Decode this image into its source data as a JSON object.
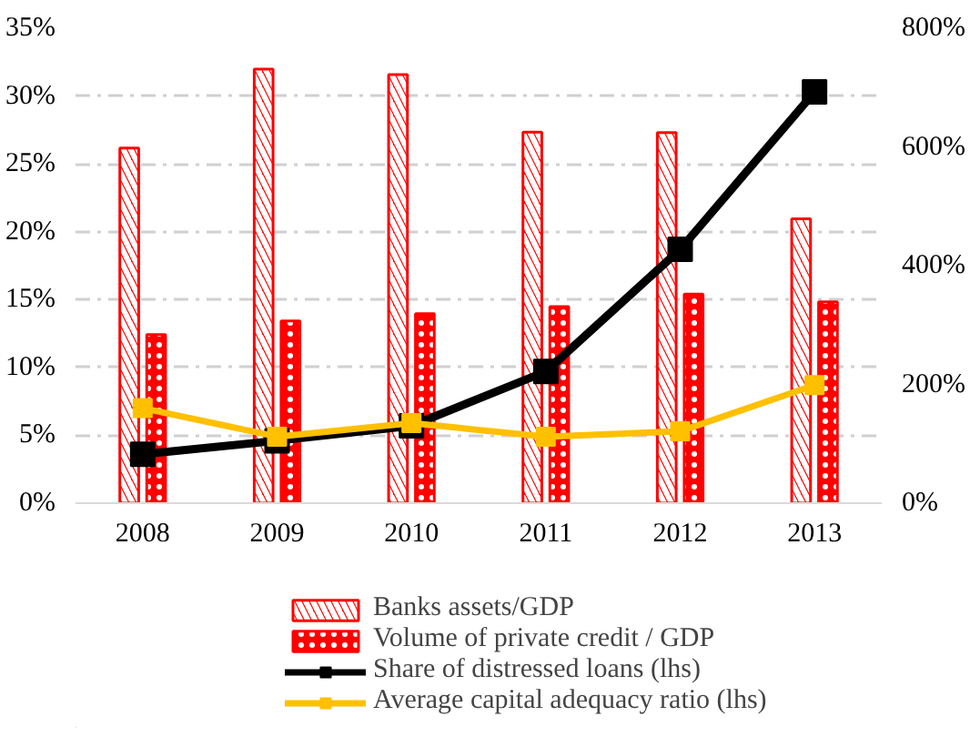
{
  "chart_data": {
    "type": "bar",
    "categories": [
      "2008",
      "2009",
      "2010",
      "2011",
      "2012",
      "2013"
    ],
    "series": [
      {
        "name": "Banks assets/GDP",
        "color": "#ff0000",
        "axis": "y2",
        "values": [
          598,
          731,
          722,
          625,
          624,
          479
        ]
      },
      {
        "name": "Volume of private credit / GDP",
        "color": "#ff0000",
        "axis": "y2",
        "values": [
          284,
          307,
          319,
          331,
          352,
          339
        ]
      },
      {
        "name": "Share of distressed loans (lhs)",
        "type": "line",
        "color": "#000000",
        "values": [
          3.6,
          4.6,
          5.7,
          9.7,
          18.7,
          30.3
        ]
      },
      {
        "name": "Average capital adequacy ratio (lhs)",
        "type": "line",
        "color": "#ffc000",
        "values": [
          7.0,
          4.9,
          5.9,
          4.9,
          5.3,
          8.7
        ]
      }
    ],
    "ylim": [
      0,
      35
    ],
    "yticks": [
      {
        "value": 0,
        "label": "0%"
      },
      {
        "value": 5,
        "label": "5%"
      },
      {
        "value": 10,
        "label": "10%"
      },
      {
        "value": 15,
        "label": "15%"
      },
      {
        "value": 20,
        "label": "20%"
      },
      {
        "value": 25,
        "label": "25%"
      },
      {
        "value": 30,
        "label": "30%"
      },
      {
        "value": 35,
        "label": "35%"
      }
    ],
    "y2lim": [
      0,
      800
    ],
    "y2ticks": [
      {
        "value": 0,
        "label": "0%"
      },
      {
        "value": 200,
        "label": "200%"
      },
      {
        "value": 400,
        "label": "400%"
      },
      {
        "value": 600,
        "label": "600%"
      },
      {
        "value": 800,
        "label": "800%"
      }
    ],
    "grid": "y",
    "legend": "bottom",
    "marker": "square",
    "line_style": "solid"
  }
}
